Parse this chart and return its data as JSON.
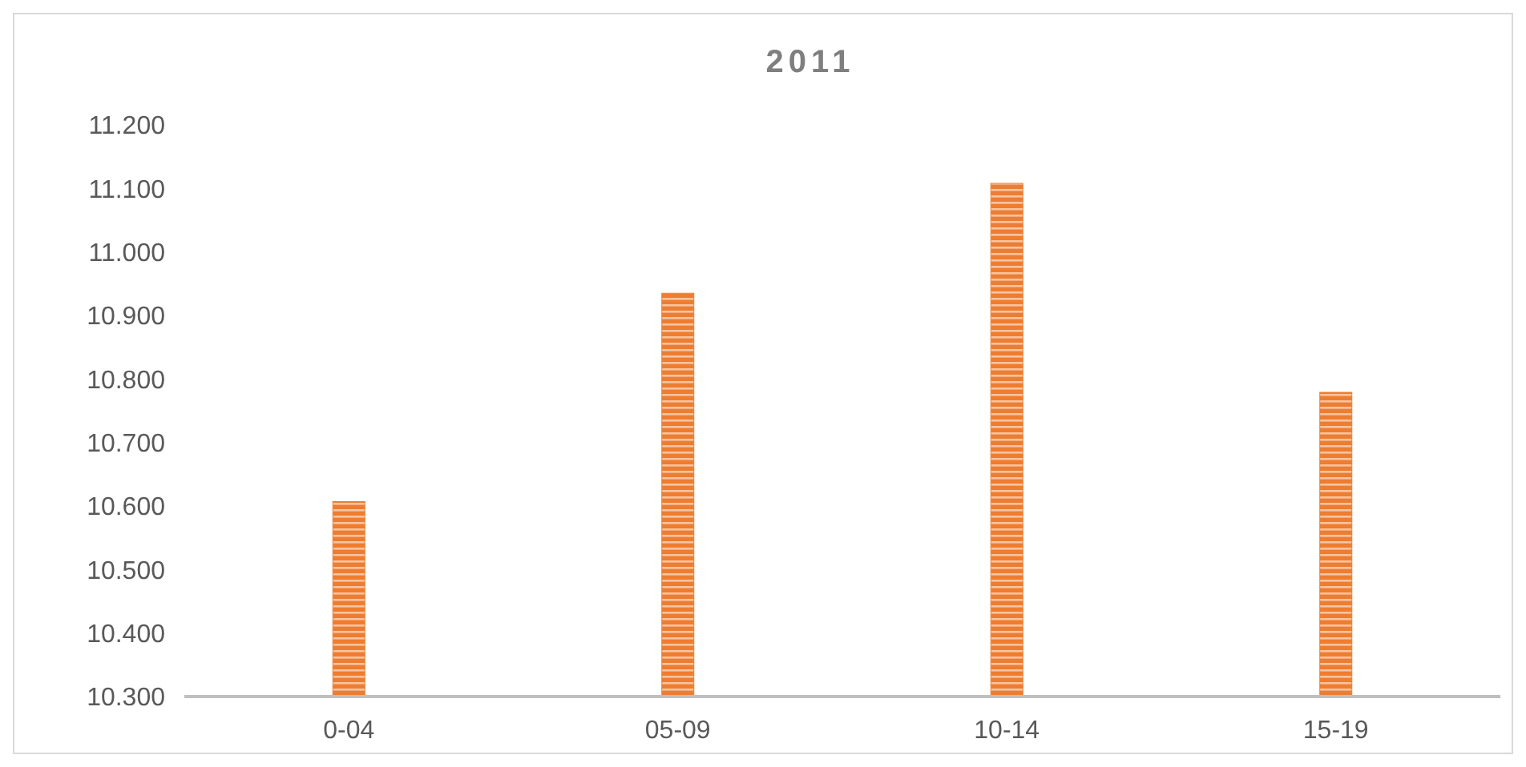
{
  "chart_data": {
    "type": "bar",
    "title": "2011",
    "categories": [
      "0-04",
      "05-09",
      "10-14",
      "15-19"
    ],
    "values": [
      10.607,
      10.935,
      11.108,
      10.779
    ],
    "color": "#ed7d31",
    "ylim": [
      10.3,
      11.2
    ],
    "yticks": [
      {
        "value": 10.3,
        "label": "10.300"
      },
      {
        "value": 10.4,
        "label": "10.400"
      },
      {
        "value": 10.5,
        "label": "10.500"
      },
      {
        "value": 10.6,
        "label": "10.600"
      },
      {
        "value": 10.7,
        "label": "10.700"
      },
      {
        "value": 10.8,
        "label": "10.800"
      },
      {
        "value": 10.9,
        "label": "10.900"
      },
      {
        "value": 11.0,
        "label": "11.000"
      },
      {
        "value": 11.1,
        "label": "11.100"
      },
      {
        "value": 11.2,
        "label": "11.200"
      }
    ],
    "grid": false
  }
}
